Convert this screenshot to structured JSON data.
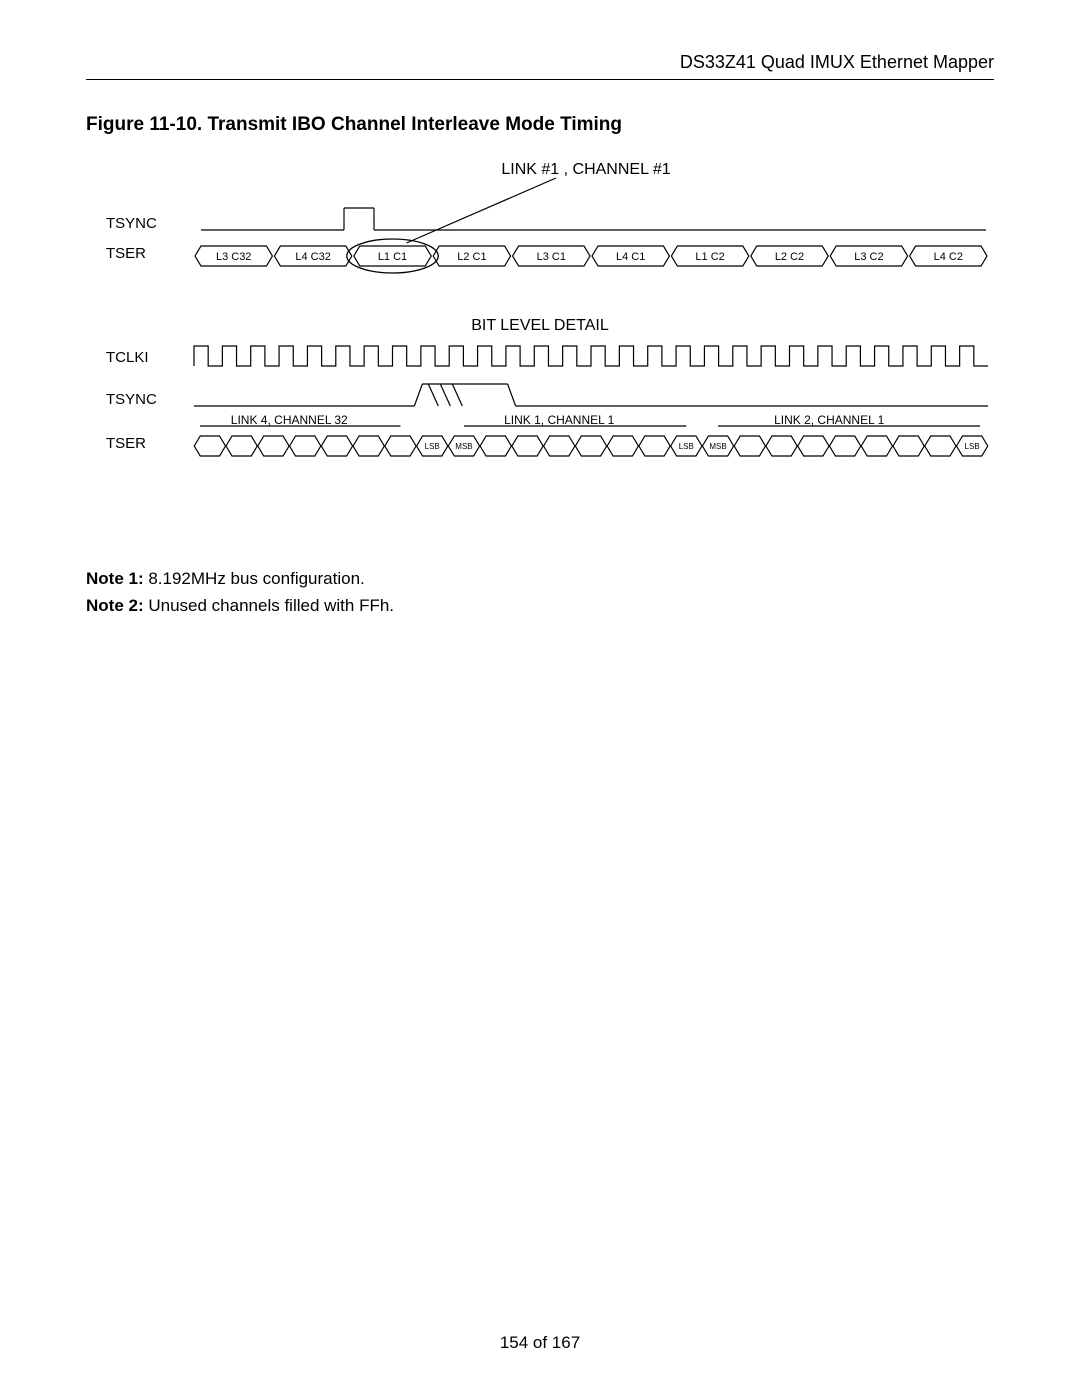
{
  "header": {
    "product": "DS33Z41 Quad IMUX Ethernet Mapper"
  },
  "figure": {
    "title": "Figure 11-10. Transmit IBO Channel Interleave Mode Timing",
    "callout": "LINK #1 , CHANNEL #1",
    "signals": {
      "tsync": "TSYNC",
      "tser": "TSER",
      "tclki": "TCLKI"
    },
    "tser_cells": [
      "L3 C32",
      "L4 C32",
      "L1 C1",
      "L2 C1",
      "L3 C1",
      "L4 C1",
      "L1 C2",
      "L2 C2",
      "L3 C2",
      "L4 C2"
    ],
    "detail_title": "BIT LEVEL DETAIL",
    "tclki_cycles": 28,
    "detail_labels": {
      "group1": "LINK 4, CHANNEL 32",
      "group2": "LINK 1, CHANNEL 1",
      "group3": "LINK 2, CHANNEL 1"
    },
    "bit_labels": {
      "lsb": "LSB",
      "msb": "MSB"
    },
    "tser_bits": [
      {
        "label": ""
      },
      {
        "label": ""
      },
      {
        "label": ""
      },
      {
        "label": ""
      },
      {
        "label": ""
      },
      {
        "label": ""
      },
      {
        "label": ""
      },
      {
        "label": "LSB"
      },
      {
        "label": "MSB"
      },
      {
        "label": ""
      },
      {
        "label": ""
      },
      {
        "label": ""
      },
      {
        "label": ""
      },
      {
        "label": ""
      },
      {
        "label": ""
      },
      {
        "label": "LSB"
      },
      {
        "label": "MSB"
      },
      {
        "label": ""
      },
      {
        "label": ""
      },
      {
        "label": ""
      },
      {
        "label": ""
      },
      {
        "label": ""
      },
      {
        "label": ""
      },
      {
        "label": ""
      },
      {
        "label": "LSB"
      }
    ],
    "style": {
      "stroke": "#000000",
      "stroke_width": 1.2,
      "label_fontsize": 15,
      "cell_fontsize": 11,
      "bit_fontsize": 8,
      "detail_title_fontsize": 16,
      "callout_fontsize": 16
    }
  },
  "notes": [
    {
      "label": "Note 1:",
      "text": " 8.192MHz bus configuration."
    },
    {
      "label": "Note 2:",
      "text": " Unused channels filled with FFh."
    }
  ],
  "footer": {
    "page": "154 of 167"
  }
}
